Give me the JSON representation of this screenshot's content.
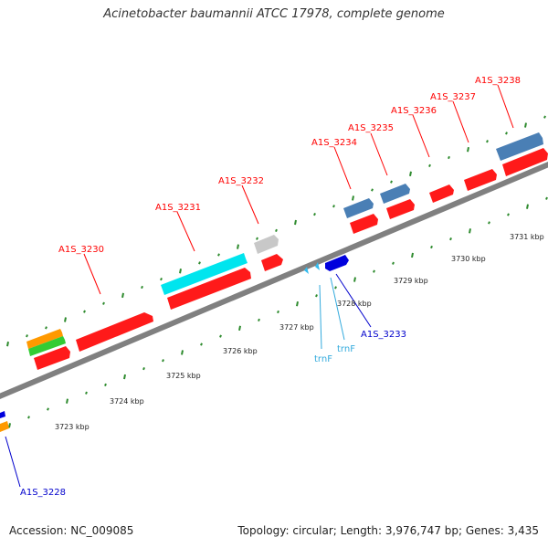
{
  "title": "Acinetobacter baumannii ATCC 17978, complete genome",
  "footer": {
    "accession": "Accession: NC_009085",
    "summary": "Topology: circular; Length: 3,976,747 bp; Genes: 3,435"
  },
  "colors": {
    "backbone": "#808080",
    "tick_green": "#2e8b2e",
    "gene_red": "#ff1a1a",
    "gene_blue": "#4a7fb5",
    "gene_cyan": "#00e5ee",
    "gene_gray": "#c8c8c8",
    "gene_orange": "#ff9900",
    "gene_green": "#33cc33",
    "gene_navy": "#0000dd",
    "trna_color": "#33bbee",
    "label_red": "#ff0000",
    "label_blue": "#0000cc",
    "label_trna": "#33aadd"
  },
  "gene_labels": [
    {
      "key": "a1s_3230",
      "text": "A1S_3230"
    },
    {
      "key": "a1s_3231",
      "text": "A1S_3231"
    },
    {
      "key": "a1s_3232",
      "text": "A1S_3232"
    },
    {
      "key": "a1s_3234",
      "text": "A1S_3234"
    },
    {
      "key": "a1s_3235",
      "text": "A1S_3235"
    },
    {
      "key": "a1s_3236",
      "text": "A1S_3236"
    },
    {
      "key": "a1s_3237",
      "text": "A1S_3237"
    },
    {
      "key": "a1s_3238",
      "text": "A1S_3238"
    },
    {
      "key": "a1s_3233",
      "text": "A1S_3233"
    },
    {
      "key": "a1s_3228",
      "text": "A1S_3228"
    },
    {
      "key": "trnf_1",
      "text": "trnF"
    },
    {
      "key": "trnf_2",
      "text": "trnF"
    }
  ],
  "kbp_labels": [
    {
      "key": "kbp_3723",
      "text": "3723 kbp"
    },
    {
      "key": "kbp_3724",
      "text": "3724 kbp"
    },
    {
      "key": "kbp_3725",
      "text": "3725 kbp"
    },
    {
      "key": "kbp_3726",
      "text": "3726 kbp"
    },
    {
      "key": "kbp_3727",
      "text": "3727 kbp"
    },
    {
      "key": "kbp_3728",
      "text": "3728 kbp"
    },
    {
      "key": "kbp_3729",
      "text": "3729 kbp"
    },
    {
      "key": "kbp_3730",
      "text": "3730 kbp"
    },
    {
      "key": "kbp_3731",
      "text": "3731 kbp"
    }
  ]
}
